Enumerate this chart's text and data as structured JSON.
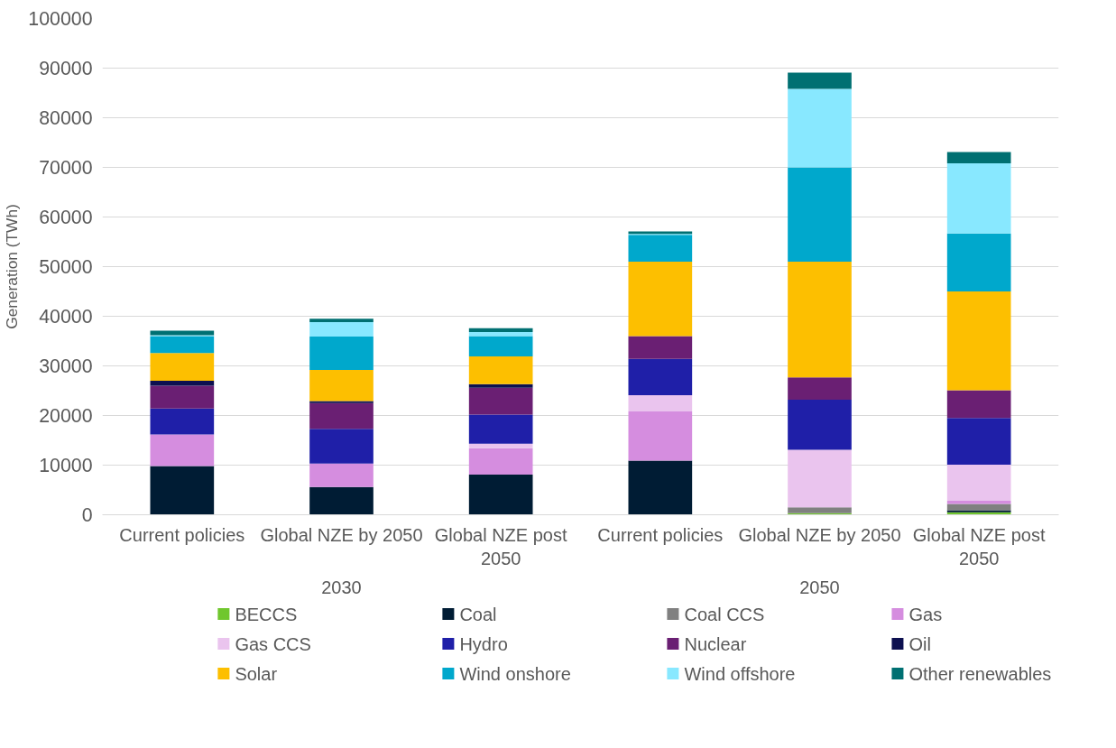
{
  "chart_data": {
    "type": "bar",
    "stacked": true,
    "ylabel": "Generation (TWh)",
    "categories": [
      "Current policies",
      "Global NZE by 2050",
      "Global NZE post 2050",
      "Current policies",
      "Global NZE by 2050",
      "Global NZE post 2050"
    ],
    "annotations": [
      "2030",
      "2050"
    ],
    "ylim": [
      0,
      100000
    ],
    "yticks": [
      0,
      10000,
      20000,
      30000,
      40000,
      50000,
      60000,
      70000,
      80000,
      90000,
      100000
    ],
    "grid": "y",
    "legend": "bottom",
    "series": [
      {
        "name": "BECCS",
        "color": "#70c72e",
        "values": [
          0,
          0,
          0,
          0,
          300,
          500
        ]
      },
      {
        "name": "Coal",
        "color": "#001c34",
        "values": [
          9800,
          5600,
          8100,
          10900,
          0,
          400
        ]
      },
      {
        "name": "Coal CCS",
        "color": "#808080",
        "values": [
          0,
          0,
          0,
          0,
          1200,
          1300
        ]
      },
      {
        "name": "Gas",
        "color": "#d58ddf",
        "values": [
          6400,
          4700,
          5300,
          9900,
          0,
          600
        ]
      },
      {
        "name": "Gas CCS",
        "color": "#eac4ee",
        "values": [
          0,
          0,
          900,
          3300,
          11600,
          7300
        ]
      },
      {
        "name": "Hydro",
        "color": "#1f1fa8",
        "values": [
          5200,
          7000,
          5900,
          7300,
          10100,
          9400
        ]
      },
      {
        "name": "Nuclear",
        "color": "#6a1f73",
        "values": [
          4600,
          5200,
          5400,
          4600,
          4500,
          5600
        ]
      },
      {
        "name": "Oil",
        "color": "#0d1050",
        "values": [
          1000,
          400,
          700,
          0,
          0,
          0
        ]
      },
      {
        "name": "Solar",
        "color": "#fdbf00",
        "values": [
          5600,
          6300,
          5600,
          15000,
          23300,
          19900
        ]
      },
      {
        "name": "Wind onshore",
        "color": "#00a8cc",
        "values": [
          3400,
          6700,
          4100,
          5400,
          19000,
          11700
        ]
      },
      {
        "name": "Wind offshore",
        "color": "#88e8ff",
        "values": [
          200,
          2900,
          800,
          200,
          15800,
          14100
        ]
      },
      {
        "name": "Other renewables",
        "color": "#007072",
        "values": [
          900,
          700,
          800,
          500,
          3300,
          2300
        ]
      }
    ]
  }
}
